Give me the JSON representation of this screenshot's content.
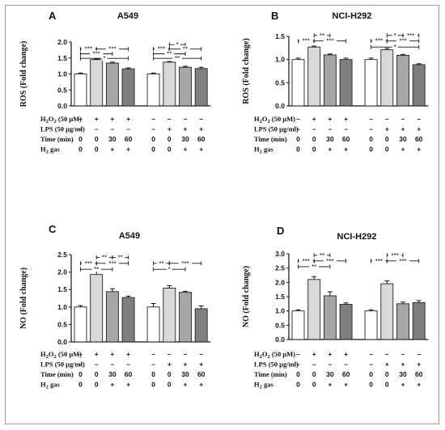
{
  "chart_data": [
    {
      "panel": "A",
      "title": "A549",
      "type": "bar",
      "ylabel": "ROS (Fold change)",
      "ylim": [
        0.0,
        2.0
      ],
      "yticks": [
        "0.0",
        "0.5",
        "1.0",
        "1.5",
        "2.0"
      ],
      "values": [
        1.0,
        1.45,
        1.34,
        1.16,
        1.0,
        1.37,
        1.21,
        1.17
      ],
      "errors": [
        0.03,
        0.02,
        0.03,
        0.03,
        0.03,
        0.02,
        0.03,
        0.04
      ],
      "colors": [
        "#ffffff",
        "#d9d9d9",
        "#a6a6a6",
        "#7f7f7f",
        "#ffffff",
        "#d9d9d9",
        "#a6a6a6",
        "#7f7f7f"
      ],
      "significance": [
        {
          "from": 0,
          "to": 1,
          "level": 1.78,
          "label": "***"
        },
        {
          "from": 1,
          "to": 3,
          "level": 1.78,
          "label": "***"
        },
        {
          "from": 0,
          "to": 2,
          "level": 1.63,
          "label": "***"
        },
        {
          "from": 0,
          "to": 3,
          "level": 1.49,
          "label": "*"
        },
        {
          "from": 5,
          "to": 6,
          "level": 1.92,
          "label": "*"
        },
        {
          "from": 4,
          "to": 5,
          "level": 1.78,
          "label": "***"
        },
        {
          "from": 5,
          "to": 7,
          "level": 1.78,
          "label": "**"
        },
        {
          "from": 4,
          "to": 6,
          "level": 1.63,
          "label": "**"
        },
        {
          "from": 4,
          "to": 7,
          "level": 1.49,
          "label": "**"
        }
      ],
      "table": {
        "rows": [
          "H2O2 (50 μM)",
          "LPS (50 μg/ml)",
          "Time (min)",
          "H2 gas"
        ],
        "cells": [
          [
            "–",
            "+",
            "+",
            "+",
            "–",
            "–",
            "–",
            "–"
          ],
          [
            "–",
            "–",
            "–",
            "–",
            "–",
            "+",
            "+",
            "+"
          ],
          [
            "0",
            "0",
            "30",
            "60",
            "0",
            "0",
            "30",
            "60"
          ],
          [
            "0",
            "0",
            "+",
            "+",
            "0",
            "0",
            "+",
            "+"
          ]
        ]
      }
    },
    {
      "panel": "B",
      "title": "NCI-H292",
      "type": "bar",
      "ylabel": "ROS (Fold change)",
      "ylim": [
        0.0,
        1.5
      ],
      "yticks": [
        "0.0",
        "0.5",
        "1.0",
        "1.5"
      ],
      "values": [
        1.0,
        1.27,
        1.1,
        1.0,
        1.0,
        1.21,
        1.09,
        0.89
      ],
      "errors": [
        0.03,
        0.02,
        0.02,
        0.03,
        0.03,
        0.03,
        0.02,
        0.02
      ],
      "colors": [
        "#ffffff",
        "#d9d9d9",
        "#a6a6a6",
        "#7f7f7f",
        "#ffffff",
        "#d9d9d9",
        "#a6a6a6",
        "#7f7f7f"
      ],
      "significance": [
        {
          "from": 0,
          "to": 1,
          "level": 1.4,
          "label": "***"
        },
        {
          "from": 1,
          "to": 2,
          "level": 1.52,
          "label": "**"
        },
        {
          "from": 1,
          "to": 3,
          "level": 1.4,
          "label": "***"
        },
        {
          "from": 5,
          "to": 6,
          "level": 1.52,
          "label": "*"
        },
        {
          "from": 6,
          "to": 7,
          "level": 1.52,
          "label": "***"
        },
        {
          "from": 4,
          "to": 5,
          "level": 1.4,
          "label": "***"
        },
        {
          "from": 5,
          "to": 7,
          "level": 1.4,
          "label": "***"
        },
        {
          "from": 4,
          "to": 7,
          "level": 1.27,
          "label": "*"
        }
      ],
      "table": {
        "rows": [
          "H2O2 (50 μM)",
          "LPS (50 μg/ml)",
          "Time (min)",
          "H2 gas"
        ],
        "cells": [
          [
            "–",
            "+",
            "+",
            "+",
            "–",
            "–",
            "–",
            "–"
          ],
          [
            "–",
            "–",
            "–",
            "–",
            "–",
            "+",
            "+",
            "+"
          ],
          [
            "0",
            "0",
            "30",
            "60",
            "0",
            "0",
            "30",
            "60"
          ],
          [
            "0",
            "0",
            "+",
            "+",
            "0",
            "0",
            "+",
            "+"
          ]
        ]
      }
    },
    {
      "panel": "C",
      "title": "A549",
      "type": "bar",
      "ylabel": "NO (Fold change)",
      "ylim": [
        0.0,
        2.5
      ],
      "yticks": [
        "0.0",
        "0.5",
        "1.0",
        "1.5",
        "2.0",
        "2.5"
      ],
      "values": [
        1.0,
        1.93,
        1.44,
        1.27,
        1.0,
        1.54,
        1.42,
        0.95
      ],
      "errors": [
        0.04,
        0.12,
        0.08,
        0.04,
        0.1,
        0.07,
        0.03,
        0.08
      ],
      "colors": [
        "#ffffff",
        "#d9d9d9",
        "#a6a6a6",
        "#7f7f7f",
        "#ffffff",
        "#d9d9d9",
        "#a6a6a6",
        "#7f7f7f"
      ],
      "significance": [
        {
          "from": 1,
          "to": 2,
          "level": 2.42,
          "label": "**"
        },
        {
          "from": 2,
          "to": 3,
          "level": 2.42,
          "label": "**"
        },
        {
          "from": 0,
          "to": 1,
          "level": 2.25,
          "label": "***"
        },
        {
          "from": 1,
          "to": 3,
          "level": 2.25,
          "label": "***"
        },
        {
          "from": 0,
          "to": 2,
          "level": 2.08,
          "label": "**"
        },
        {
          "from": 4,
          "to": 5,
          "level": 2.25,
          "label": "**"
        },
        {
          "from": 5,
          "to": 7,
          "level": 2.25,
          "label": "***"
        },
        {
          "from": 4,
          "to": 6,
          "level": 2.08,
          "label": "*"
        }
      ],
      "table": {
        "rows": [
          "H2O2 (50 μM)",
          "LPS (50 μg/ml)",
          "Time (min)",
          "H2 gas"
        ],
        "cells": [
          [
            "–",
            "+",
            "+",
            "+",
            "–",
            "–",
            "–",
            "–"
          ],
          [
            "–",
            "–",
            "–",
            "–",
            "–",
            "+",
            "+",
            "+"
          ],
          [
            "0",
            "0",
            "30",
            "60",
            "0",
            "0",
            "30",
            "60"
          ],
          [
            "0",
            "0",
            "+",
            "+",
            "0",
            "0",
            "+",
            "+"
          ]
        ]
      }
    },
    {
      "panel": "D",
      "title": "NCI-H292",
      "type": "bar",
      "ylabel": "NO (Fold change)",
      "ylim": [
        0.0,
        3.0
      ],
      "yticks": [
        "0.0",
        "0.5",
        "1.0",
        "1.5",
        "2.0",
        "2.5",
        "3.0"
      ],
      "values": [
        1.0,
        2.1,
        1.53,
        1.23,
        1.0,
        1.95,
        1.25,
        1.29
      ],
      "errors": [
        0.04,
        0.1,
        0.14,
        0.05,
        0.04,
        0.1,
        0.06,
        0.07
      ],
      "colors": [
        "#ffffff",
        "#d9d9d9",
        "#a6a6a6",
        "#7f7f7f",
        "#ffffff",
        "#d9d9d9",
        "#a6a6a6",
        "#7f7f7f"
      ],
      "significance": [
        {
          "from": 1,
          "to": 2,
          "level": 2.95,
          "label": "**"
        },
        {
          "from": 0,
          "to": 1,
          "level": 2.75,
          "label": "***"
        },
        {
          "from": 1,
          "to": 3,
          "level": 2.75,
          "label": "***"
        },
        {
          "from": 0,
          "to": 2,
          "level": 2.55,
          "label": "**"
        },
        {
          "from": 5,
          "to": 6,
          "level": 2.95,
          "label": "***"
        },
        {
          "from": 4,
          "to": 5,
          "level": 2.75,
          "label": "***"
        },
        {
          "from": 5,
          "to": 7,
          "level": 2.75,
          "label": "***"
        }
      ],
      "table": {
        "rows": [
          "H2O2 (50 μM)",
          "LPS (50 μg/ml)",
          "Time (min)",
          "H2 gas"
        ],
        "cells": [
          [
            "–",
            "+",
            "+",
            "+",
            "–",
            "–",
            "–",
            "–"
          ],
          [
            "–",
            "–",
            "–",
            "–",
            "–",
            "+",
            "+",
            "+"
          ],
          [
            "0",
            "0",
            "30",
            "60",
            "0",
            "0",
            "30",
            "60"
          ],
          [
            "0",
            "0",
            "+",
            "+",
            "0",
            "0",
            "+",
            "+"
          ]
        ]
      }
    }
  ]
}
